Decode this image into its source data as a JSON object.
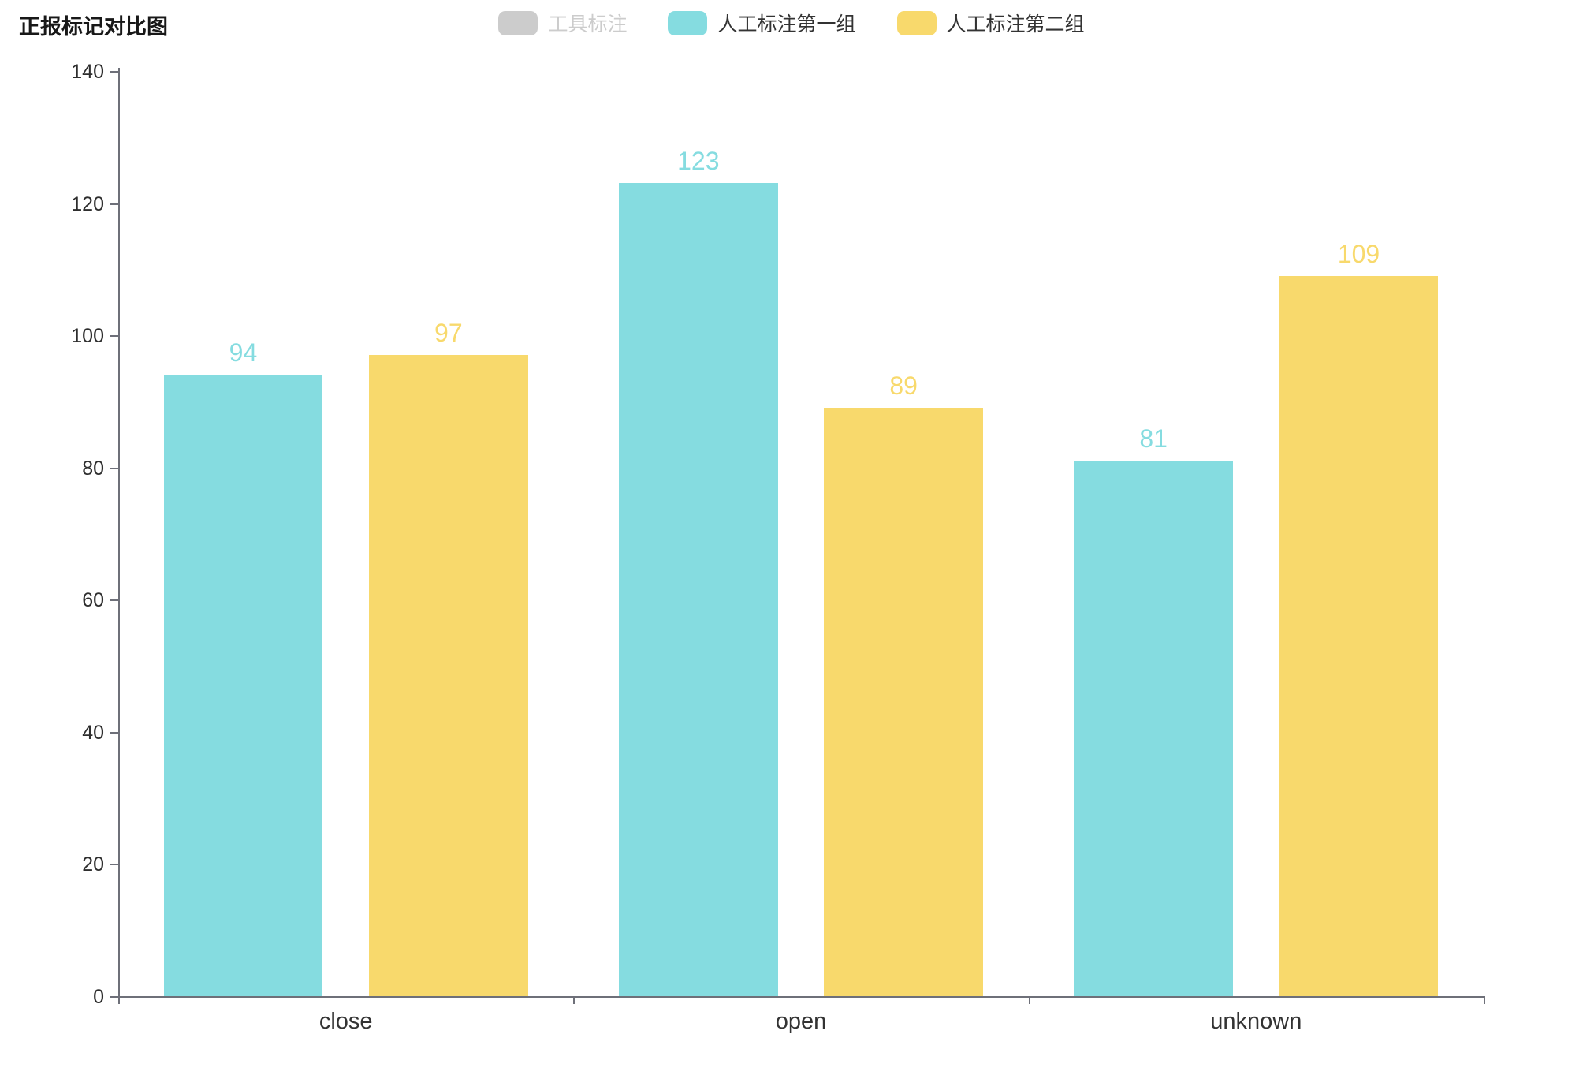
{
  "chart_data": {
    "type": "bar",
    "title": "正报标记对比图",
    "categories": [
      "close",
      "open",
      "unknown"
    ],
    "series": [
      {
        "name": "工具标注",
        "values": [],
        "color": "#cccccc",
        "selected": false
      },
      {
        "name": "人工标注第一组",
        "values": [
          94,
          123,
          81
        ],
        "color": "#85DCE0",
        "selected": true
      },
      {
        "name": "人工标注第二组",
        "values": [
          97,
          89,
          109
        ],
        "color": "#F8D96C",
        "selected": true
      }
    ],
    "ylim": [
      0,
      140
    ],
    "y_ticks": [
      0,
      20,
      40,
      60,
      80,
      100,
      120,
      140
    ],
    "xlabel": "",
    "ylabel": "",
    "legend_position": "top-center",
    "grid": false,
    "value_labels": true,
    "colors": {
      "axis": "#6E7079",
      "axis_label": "#2e2e2e",
      "category_label": "#333333",
      "legend_text": "#333333",
      "legend_disabled": "#cccccc"
    }
  }
}
